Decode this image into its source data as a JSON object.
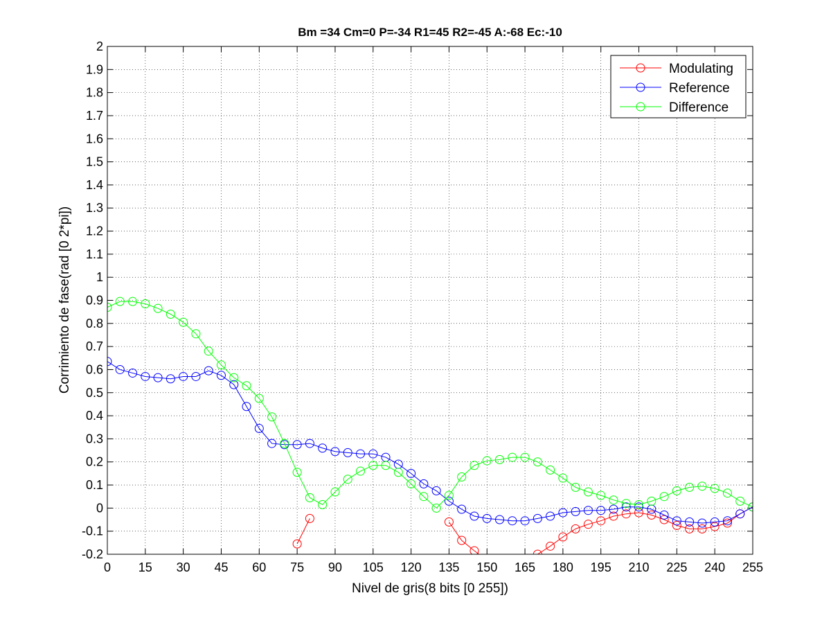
{
  "chart_data": {
    "type": "line",
    "title": "Bm =34  Cm=0  P=-34  R1=45  R2=-45  A:-68  Ec:-10",
    "xlabel": "Nivel de gris(8 bits [0 255])",
    "ylabel": "Corrimiento de fase(rad [0 2*pi])",
    "xlim": [
      0,
      255
    ],
    "ylim": [
      -0.2,
      2
    ],
    "grid": true,
    "legend_position": "top-right",
    "x_ticks": [
      "0",
      "15",
      "30",
      "45",
      "60",
      "75",
      "90",
      "105",
      "120",
      "135",
      "150",
      "165",
      "180",
      "195",
      "210",
      "225",
      "240",
      "255"
    ],
    "y_ticks": [
      "-0.2",
      "-0.1",
      "0",
      "0.1",
      "0.2",
      "0.3",
      "0.4",
      "0.5",
      "0.6",
      "0.7",
      "0.8",
      "0.9",
      "1",
      "1.1",
      "1.2",
      "1.3",
      "1.4",
      "1.5",
      "1.6",
      "1.7",
      "1.8",
      "1.9",
      "2"
    ],
    "x": [
      0,
      5,
      10,
      15,
      20,
      25,
      30,
      35,
      40,
      45,
      50,
      55,
      60,
      65,
      70,
      75,
      80,
      85,
      90,
      95,
      100,
      105,
      110,
      115,
      120,
      125,
      130,
      135,
      140,
      145,
      150,
      155,
      160,
      165,
      170,
      175,
      180,
      185,
      190,
      195,
      200,
      205,
      210,
      215,
      220,
      225,
      230,
      235,
      240,
      245,
      250,
      255
    ],
    "series": [
      {
        "name": "Modulating",
        "color": "#ff0000",
        "values": [
          null,
          null,
          null,
          null,
          null,
          null,
          null,
          null,
          null,
          null,
          null,
          null,
          null,
          null,
          null,
          -0.155,
          -0.045,
          null,
          null,
          null,
          null,
          null,
          null,
          null,
          null,
          null,
          null,
          -0.06,
          -0.14,
          -0.185,
          -0.225,
          -0.24,
          -0.24,
          -0.225,
          -0.2,
          -0.165,
          -0.125,
          -0.09,
          -0.07,
          -0.055,
          -0.035,
          -0.025,
          -0.02,
          -0.03,
          -0.05,
          -0.075,
          -0.09,
          -0.09,
          -0.08,
          -0.065,
          -0.025,
          0.005
        ]
      },
      {
        "name": "Reference",
        "color": "#0000ff",
        "values": [
          0.635,
          0.6,
          0.585,
          0.57,
          0.565,
          0.56,
          0.57,
          0.57,
          0.595,
          0.575,
          0.535,
          0.44,
          0.345,
          0.28,
          0.275,
          0.275,
          0.28,
          0.26,
          0.245,
          0.24,
          0.235,
          0.235,
          0.22,
          0.19,
          0.15,
          0.105,
          0.075,
          0.03,
          -0.005,
          -0.035,
          -0.045,
          -0.05,
          -0.055,
          -0.055,
          -0.045,
          -0.035,
          -0.02,
          -0.015,
          -0.01,
          -0.01,
          -0.005,
          0.005,
          0.005,
          -0.005,
          -0.03,
          -0.055,
          -0.06,
          -0.065,
          -0.06,
          -0.055,
          -0.025,
          0.005
        ]
      },
      {
        "name": "Difference",
        "color": "#00ff00",
        "values": [
          0.87,
          0.895,
          0.895,
          0.885,
          0.865,
          0.84,
          0.805,
          0.755,
          0.68,
          0.62,
          0.565,
          0.53,
          0.475,
          0.395,
          0.28,
          0.155,
          0.045,
          0.015,
          0.07,
          0.125,
          0.16,
          0.185,
          0.185,
          0.155,
          0.105,
          0.05,
          0.0,
          0.055,
          0.135,
          0.185,
          0.205,
          0.21,
          0.22,
          0.22,
          0.2,
          0.165,
          0.13,
          0.09,
          0.07,
          0.055,
          0.035,
          0.02,
          0.015,
          0.03,
          0.05,
          0.075,
          0.09,
          0.095,
          0.085,
          0.065,
          0.03,
          0.005
        ]
      }
    ]
  }
}
